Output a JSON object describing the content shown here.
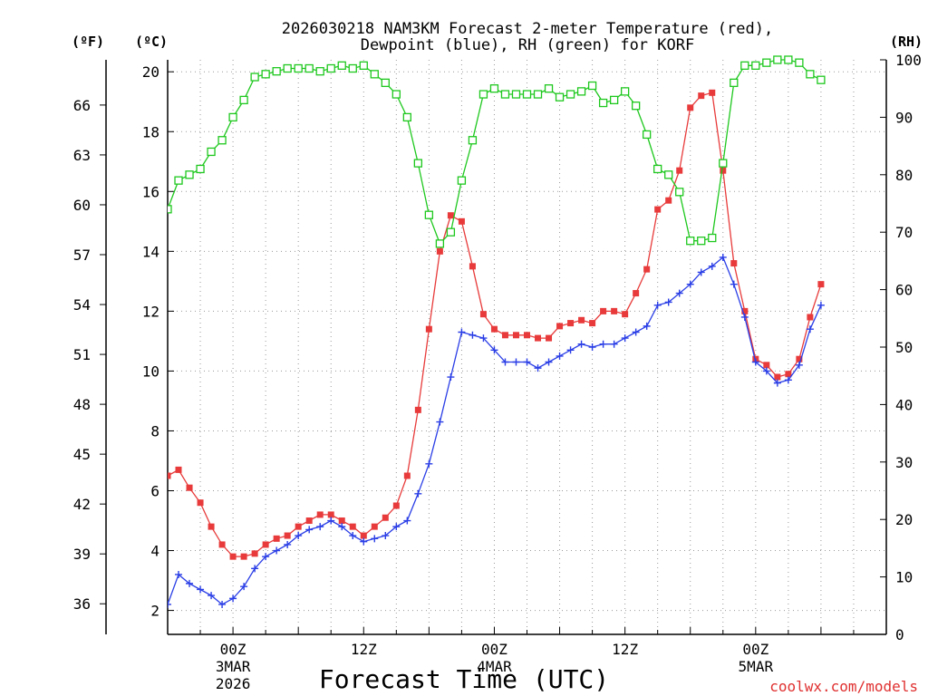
{
  "chart_data": {
    "type": "line",
    "title_line1": "2026030218 NAM3KM Forecast 2-meter Temperature (red),",
    "title_line2": "Dewpoint (blue), RH (green) for KORF",
    "xlabel": "Forecast Time (UTC)",
    "watermark": "coolwx.com/models",
    "left_axis_f_label": "(ºF)",
    "left_axis_c_label": "(ºC)",
    "right_axis_label": "(RH)",
    "x_hours": [
      -6,
      60
    ],
    "c_ylim": [
      1.2,
      20.4
    ],
    "rh_ylim": [
      0,
      100
    ],
    "f_ticks": [
      {
        "v": 36
      },
      {
        "v": 39
      },
      {
        "v": 42
      },
      {
        "v": 45
      },
      {
        "v": 48
      },
      {
        "v": 51
      },
      {
        "v": 54
      },
      {
        "v": 57
      },
      {
        "v": 60
      },
      {
        "v": 63
      },
      {
        "v": 66
      }
    ],
    "c_ticks": [
      {
        "v": 2
      },
      {
        "v": 4
      },
      {
        "v": 6
      },
      {
        "v": 8
      },
      {
        "v": 10
      },
      {
        "v": 12
      },
      {
        "v": 14
      },
      {
        "v": 16
      },
      {
        "v": 18
      },
      {
        "v": 20
      }
    ],
    "rh_ticks": [
      {
        "v": 0
      },
      {
        "v": 10
      },
      {
        "v": 20
      },
      {
        "v": 30
      },
      {
        "v": 40
      },
      {
        "v": 50
      },
      {
        "v": 60
      },
      {
        "v": 70
      },
      {
        "v": 80
      },
      {
        "v": 90
      },
      {
        "v": 100
      }
    ],
    "x_ticks": [
      {
        "h": 0,
        "l1": "00Z",
        "l2": "3MAR",
        "l3": "2026"
      },
      {
        "h": 12,
        "l1": "12Z",
        "l2": "",
        "l3": ""
      },
      {
        "h": 24,
        "l1": "00Z",
        "l2": "4MAR",
        "l3": ""
      },
      {
        "h": 36,
        "l1": "12Z",
        "l2": "",
        "l3": ""
      },
      {
        "h": 48,
        "l1": "00Z",
        "l2": "5MAR",
        "l3": ""
      }
    ],
    "series": [
      {
        "name": "Temperature",
        "color": "#e83a3a",
        "axis": "c",
        "marker": "filled-square",
        "points": [
          {
            "h": -6,
            "v": 6.5
          },
          {
            "h": -5,
            "v": 6.7
          },
          {
            "h": -4,
            "v": 6.1
          },
          {
            "h": -3,
            "v": 5.6
          },
          {
            "h": -2,
            "v": 4.8
          },
          {
            "h": -1,
            "v": 4.2
          },
          {
            "h": 0,
            "v": 3.8
          },
          {
            "h": 1,
            "v": 3.8
          },
          {
            "h": 2,
            "v": 3.9
          },
          {
            "h": 3,
            "v": 4.2
          },
          {
            "h": 4,
            "v": 4.4
          },
          {
            "h": 5,
            "v": 4.5
          },
          {
            "h": 6,
            "v": 4.8
          },
          {
            "h": 7,
            "v": 5.0
          },
          {
            "h": 8,
            "v": 5.2
          },
          {
            "h": 9,
            "v": 5.2
          },
          {
            "h": 10,
            "v": 5.0
          },
          {
            "h": 11,
            "v": 4.8
          },
          {
            "h": 12,
            "v": 4.5
          },
          {
            "h": 13,
            "v": 4.8
          },
          {
            "h": 14,
            "v": 5.1
          },
          {
            "h": 15,
            "v": 5.5
          },
          {
            "h": 16,
            "v": 6.5
          },
          {
            "h": 17,
            "v": 8.7
          },
          {
            "h": 18,
            "v": 11.4
          },
          {
            "h": 19,
            "v": 14.0
          },
          {
            "h": 20,
            "v": 15.2
          },
          {
            "h": 21,
            "v": 15.0
          },
          {
            "h": 22,
            "v": 13.5
          },
          {
            "h": 23,
            "v": 11.9
          },
          {
            "h": 24,
            "v": 11.4
          },
          {
            "h": 25,
            "v": 11.2
          },
          {
            "h": 26,
            "v": 11.2
          },
          {
            "h": 27,
            "v": 11.2
          },
          {
            "h": 28,
            "v": 11.1
          },
          {
            "h": 29,
            "v": 11.1
          },
          {
            "h": 30,
            "v": 11.5
          },
          {
            "h": 31,
            "v": 11.6
          },
          {
            "h": 32,
            "v": 11.7
          },
          {
            "h": 33,
            "v": 11.6
          },
          {
            "h": 34,
            "v": 12.0
          },
          {
            "h": 35,
            "v": 12.0
          },
          {
            "h": 36,
            "v": 11.9
          },
          {
            "h": 37,
            "v": 12.6
          },
          {
            "h": 38,
            "v": 13.4
          },
          {
            "h": 39,
            "v": 15.4
          },
          {
            "h": 40,
            "v": 15.7
          },
          {
            "h": 41,
            "v": 16.7
          },
          {
            "h": 42,
            "v": 18.8
          },
          {
            "h": 43,
            "v": 19.2
          },
          {
            "h": 44,
            "v": 19.3
          },
          {
            "h": 45,
            "v": 16.7
          },
          {
            "h": 46,
            "v": 13.6
          },
          {
            "h": 47,
            "v": 12.0
          },
          {
            "h": 48,
            "v": 10.4
          },
          {
            "h": 49,
            "v": 10.2
          },
          {
            "h": 50,
            "v": 9.8
          },
          {
            "h": 51,
            "v": 9.9
          },
          {
            "h": 52,
            "v": 10.4
          },
          {
            "h": 53,
            "v": 11.8
          },
          {
            "h": 54,
            "v": 12.9
          }
        ]
      },
      {
        "name": "Dewpoint",
        "color": "#2a3ee6",
        "axis": "c",
        "marker": "plus",
        "points": [
          {
            "h": -6,
            "v": 2.2
          },
          {
            "h": -5,
            "v": 3.2
          },
          {
            "h": -4,
            "v": 2.9
          },
          {
            "h": -3,
            "v": 2.7
          },
          {
            "h": -2,
            "v": 2.5
          },
          {
            "h": -1,
            "v": 2.2
          },
          {
            "h": 0,
            "v": 2.4
          },
          {
            "h": 1,
            "v": 2.8
          },
          {
            "h": 2,
            "v": 3.4
          },
          {
            "h": 3,
            "v": 3.8
          },
          {
            "h": 4,
            "v": 4.0
          },
          {
            "h": 5,
            "v": 4.2
          },
          {
            "h": 6,
            "v": 4.5
          },
          {
            "h": 7,
            "v": 4.7
          },
          {
            "h": 8,
            "v": 4.8
          },
          {
            "h": 9,
            "v": 5.0
          },
          {
            "h": 10,
            "v": 4.8
          },
          {
            "h": 11,
            "v": 4.5
          },
          {
            "h": 12,
            "v": 4.3
          },
          {
            "h": 13,
            "v": 4.4
          },
          {
            "h": 14,
            "v": 4.5
          },
          {
            "h": 15,
            "v": 4.8
          },
          {
            "h": 16,
            "v": 5.0
          },
          {
            "h": 17,
            "v": 5.9
          },
          {
            "h": 18,
            "v": 6.9
          },
          {
            "h": 19,
            "v": 8.3
          },
          {
            "h": 20,
            "v": 9.8
          },
          {
            "h": 21,
            "v": 11.3
          },
          {
            "h": 22,
            "v": 11.2
          },
          {
            "h": 23,
            "v": 11.1
          },
          {
            "h": 24,
            "v": 10.7
          },
          {
            "h": 25,
            "v": 10.3
          },
          {
            "h": 26,
            "v": 10.3
          },
          {
            "h": 27,
            "v": 10.3
          },
          {
            "h": 28,
            "v": 10.1
          },
          {
            "h": 29,
            "v": 10.3
          },
          {
            "h": 30,
            "v": 10.5
          },
          {
            "h": 31,
            "v": 10.7
          },
          {
            "h": 32,
            "v": 10.9
          },
          {
            "h": 33,
            "v": 10.8
          },
          {
            "h": 34,
            "v": 10.9
          },
          {
            "h": 35,
            "v": 10.9
          },
          {
            "h": 36,
            "v": 11.1
          },
          {
            "h": 37,
            "v": 11.3
          },
          {
            "h": 38,
            "v": 11.5
          },
          {
            "h": 39,
            "v": 12.2
          },
          {
            "h": 40,
            "v": 12.3
          },
          {
            "h": 41,
            "v": 12.6
          },
          {
            "h": 42,
            "v": 12.9
          },
          {
            "h": 43,
            "v": 13.3
          },
          {
            "h": 44,
            "v": 13.5
          },
          {
            "h": 45,
            "v": 13.8
          },
          {
            "h": 46,
            "v": 12.9
          },
          {
            "h": 47,
            "v": 11.8
          },
          {
            "h": 48,
            "v": 10.3
          },
          {
            "h": 49,
            "v": 10.0
          },
          {
            "h": 50,
            "v": 9.6
          },
          {
            "h": 51,
            "v": 9.7
          },
          {
            "h": 52,
            "v": 10.2
          },
          {
            "h": 53,
            "v": 11.4
          },
          {
            "h": 54,
            "v": 12.2
          }
        ]
      },
      {
        "name": "RH",
        "color": "#1ec81e",
        "axis": "rh",
        "marker": "open-square",
        "points": [
          {
            "h": -6,
            "v": 74
          },
          {
            "h": -5,
            "v": 79
          },
          {
            "h": -4,
            "v": 80
          },
          {
            "h": -3,
            "v": 81
          },
          {
            "h": -2,
            "v": 84
          },
          {
            "h": -1,
            "v": 86
          },
          {
            "h": 0,
            "v": 90
          },
          {
            "h": 1,
            "v": 93
          },
          {
            "h": 2,
            "v": 97
          },
          {
            "h": 3,
            "v": 97.5
          },
          {
            "h": 4,
            "v": 98
          },
          {
            "h": 5,
            "v": 98.5
          },
          {
            "h": 6,
            "v": 98.5
          },
          {
            "h": 7,
            "v": 98.5
          },
          {
            "h": 8,
            "v": 98
          },
          {
            "h": 9,
            "v": 98.5
          },
          {
            "h": 10,
            "v": 99
          },
          {
            "h": 11,
            "v": 98.5
          },
          {
            "h": 12,
            "v": 99
          },
          {
            "h": 13,
            "v": 97.5
          },
          {
            "h": 14,
            "v": 96
          },
          {
            "h": 15,
            "v": 94
          },
          {
            "h": 16,
            "v": 90
          },
          {
            "h": 17,
            "v": 82
          },
          {
            "h": 18,
            "v": 73
          },
          {
            "h": 19,
            "v": 68
          },
          {
            "h": 20,
            "v": 70
          },
          {
            "h": 21,
            "v": 79
          },
          {
            "h": 22,
            "v": 86
          },
          {
            "h": 23,
            "v": 94
          },
          {
            "h": 24,
            "v": 95
          },
          {
            "h": 25,
            "v": 94
          },
          {
            "h": 26,
            "v": 94
          },
          {
            "h": 27,
            "v": 94
          },
          {
            "h": 28,
            "v": 94
          },
          {
            "h": 29,
            "v": 95
          },
          {
            "h": 30,
            "v": 93.5
          },
          {
            "h": 31,
            "v": 94
          },
          {
            "h": 32,
            "v": 94.5
          },
          {
            "h": 33,
            "v": 95.5
          },
          {
            "h": 34,
            "v": 92.5
          },
          {
            "h": 35,
            "v": 93
          },
          {
            "h": 36,
            "v": 94.5
          },
          {
            "h": 37,
            "v": 92
          },
          {
            "h": 38,
            "v": 87
          },
          {
            "h": 39,
            "v": 81
          },
          {
            "h": 40,
            "v": 80
          },
          {
            "h": 41,
            "v": 77
          },
          {
            "h": 42,
            "v": 68.5
          },
          {
            "h": 43,
            "v": 68.5
          },
          {
            "h": 44,
            "v": 69
          },
          {
            "h": 45,
            "v": 82
          },
          {
            "h": 46,
            "v": 96
          },
          {
            "h": 47,
            "v": 99
          },
          {
            "h": 48,
            "v": 99
          },
          {
            "h": 49,
            "v": 99.5
          },
          {
            "h": 50,
            "v": 100
          },
          {
            "h": 51,
            "v": 100
          },
          {
            "h": 52,
            "v": 99.5
          },
          {
            "h": 53,
            "v": 97.5
          },
          {
            "h": 54,
            "v": 96.5
          }
        ]
      }
    ]
  }
}
